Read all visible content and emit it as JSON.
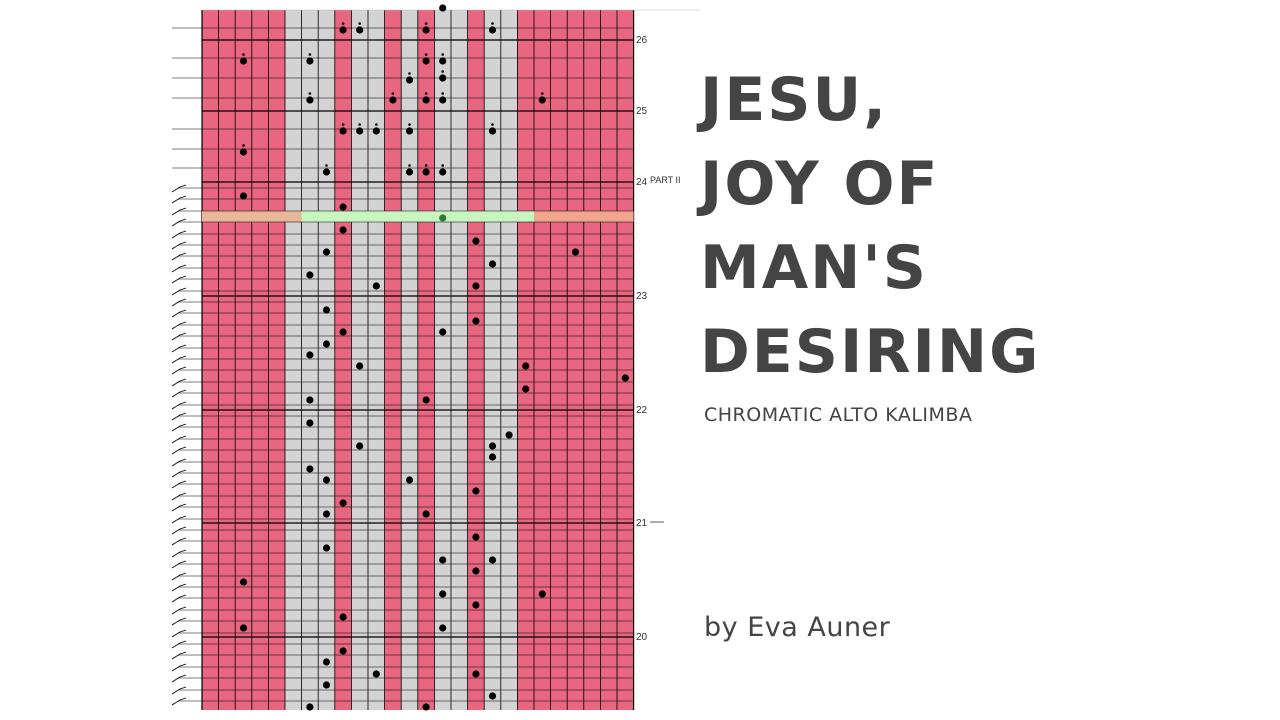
{
  "title": {
    "line1": "JESU,",
    "line2": "JOY OF",
    "line3": "MAN'S",
    "line4": "DESIRING"
  },
  "subtitle": "CHROMATIC ALTO KALIMBA",
  "author": "by Eva Auner",
  "tablature": {
    "part_label": "PART II",
    "measures": [
      "26",
      "25",
      "24",
      "23",
      "22",
      "21",
      "20"
    ],
    "colors": {
      "white_key": "#e8667f",
      "black_key": "#d3d3d3",
      "line": "#000000",
      "highlight_green": "#c9f5c1",
      "highlight_orange": "#f0a68d",
      "note": "#000000",
      "highlighted_note": "#2f7a3a"
    },
    "columns": [
      "pink",
      "pink",
      "pink",
      "pink",
      "pink",
      "gray",
      "gray",
      "gray",
      "pink",
      "gray",
      "gray",
      "pink",
      "gray",
      "pink",
      "gray",
      "gray",
      "pink",
      "gray",
      "gray",
      "pink",
      "pink",
      "pink",
      "pink",
      "pink",
      "pink",
      "pink"
    ],
    "icons": [
      "note-stem-icon",
      "tab-note-icon"
    ]
  }
}
